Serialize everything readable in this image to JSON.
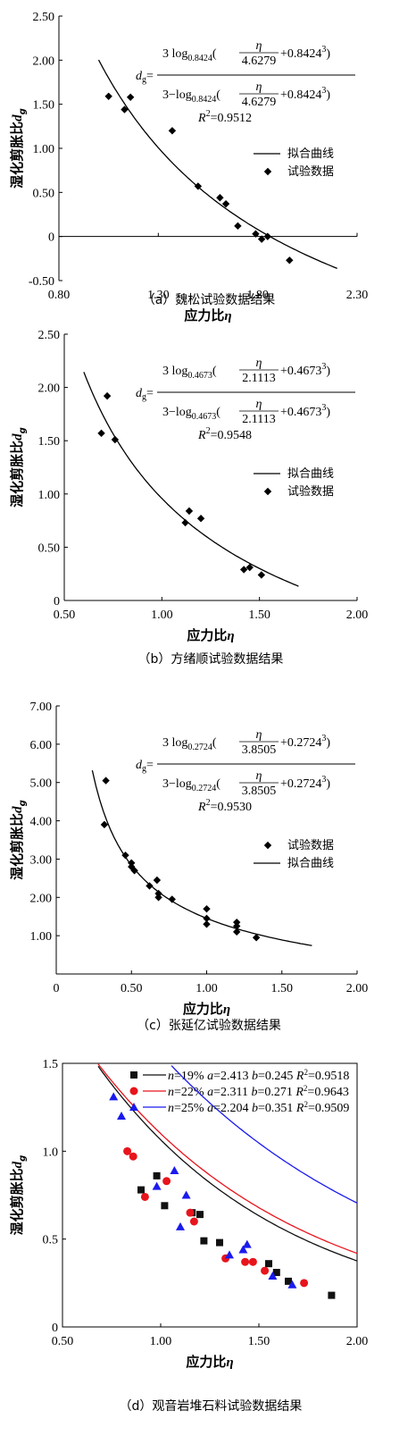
{
  "chart_data": [
    {
      "type": "scatter",
      "caption": "（a）魏松试验数据结果",
      "xlabel": "应力比η",
      "ylabel": "湿化剪胀比d",
      "ylabel_sub": "g",
      "xlim": [
        0.8,
        2.3
      ],
      "ylim": [
        -0.5,
        2.5
      ],
      "xticks": [
        0.8,
        1.3,
        1.8,
        2.3
      ],
      "xtick_labels": [
        "0.80",
        "1.30",
        "1.80",
        "2.30"
      ],
      "yticks": [
        -0.5,
        0,
        0.5,
        1.0,
        1.5,
        2.0,
        2.5
      ],
      "ytick_labels": [
        "-0.50",
        "0",
        "0.50",
        "1.00",
        "1.50",
        "2.00",
        "2.50"
      ],
      "formula": {
        "lhs": "d",
        "lhs_sub": "g",
        "num_coef": "3 log",
        "base": "0.8424",
        "eta": "η",
        "denom_val": "4.6279",
        "plus": "+0.8424",
        "pow": "3",
        "den_prefix": "3−log",
        "r2_label": "R",
        "r2_sup": "2",
        "r2_value": "=0.9512"
      },
      "legend": {
        "placement": "right",
        "curve": "拟合曲线",
        "data": "试验数据"
      },
      "fit": {
        "a": 0.8424,
        "b": 4.6279,
        "x_range": [
          1.0,
          2.2
        ]
      },
      "series": [
        {
          "name": "试验数据",
          "points": [
            [
              1.05,
              1.59
            ],
            [
              1.13,
              1.44
            ],
            [
              1.16,
              1.58
            ],
            [
              1.37,
              1.2
            ],
            [
              1.5,
              0.57
            ],
            [
              1.61,
              0.44
            ],
            [
              1.64,
              0.37
            ],
            [
              1.7,
              0.12
            ],
            [
              1.79,
              0.03
            ],
            [
              1.82,
              -0.03
            ],
            [
              1.85,
              0.0
            ],
            [
              1.96,
              -0.27
            ]
          ]
        }
      ]
    },
    {
      "type": "scatter",
      "caption": "（b）方绪顺试验数据结果",
      "xlabel": "应力比η",
      "ylabel": "湿化剪胀比d",
      "ylabel_sub": "g",
      "xlim": [
        0.5,
        2.0
      ],
      "ylim": [
        0,
        2.5
      ],
      "xticks": [
        0.5,
        1.0,
        1.5,
        2.0
      ],
      "xtick_labels": [
        "0.50",
        "1.00",
        "1.50",
        "2.00"
      ],
      "yticks": [
        0,
        0.5,
        1.0,
        1.5,
        2.0,
        2.5
      ],
      "ytick_labels": [
        "0",
        "0.50",
        "1.00",
        "1.50",
        "2.00",
        "2.50"
      ],
      "formula": {
        "lhs": "d",
        "lhs_sub": "g",
        "num_coef": "3 log",
        "base": "0.4673",
        "eta": "η",
        "denom_val": "2.1113",
        "plus": "+0.4673",
        "pow": "3",
        "den_prefix": "3−log",
        "r2_label": "R",
        "r2_sup": "2",
        "r2_value": "=0.9548"
      },
      "legend": {
        "placement": "right",
        "curve": "拟合曲线",
        "data": "试验数据"
      },
      "fit": {
        "a": 0.4673,
        "b": 2.1113,
        "x_range": [
          0.6,
          1.7
        ]
      },
      "series": [
        {
          "name": "试验数据",
          "points": [
            [
              0.69,
              1.57
            ],
            [
              0.72,
              1.92
            ],
            [
              0.76,
              1.51
            ],
            [
              1.12,
              0.73
            ],
            [
              1.14,
              0.84
            ],
            [
              1.2,
              0.77
            ],
            [
              1.42,
              0.29
            ],
            [
              1.45,
              0.31
            ],
            [
              1.51,
              0.24
            ]
          ]
        }
      ]
    },
    {
      "type": "scatter",
      "caption": "（c）张延亿试验数据结果",
      "xlabel": "应力比η",
      "ylabel": "湿化剪胀比d",
      "ylabel_sub": "g",
      "xlim": [
        0,
        2.0
      ],
      "ylim": [
        0,
        7.0
      ],
      "xticks": [
        0,
        0.5,
        1.0,
        1.5,
        2.0
      ],
      "xtick_labels": [
        "0",
        "0.50",
        "1.00",
        "1.50",
        "2.00"
      ],
      "yticks": [
        1,
        2,
        3,
        4,
        5,
        6,
        7
      ],
      "ytick_labels": [
        "1.00",
        "2.00",
        "3.00",
        "4.00",
        "5.00",
        "6.00",
        "7.00"
      ],
      "formula": {
        "lhs": "d",
        "lhs_sub": "g",
        "num_coef": "3 log",
        "base": "0.2724",
        "eta": "η",
        "denom_val": "3.8505",
        "plus": "+0.2724",
        "pow": "3",
        "den_prefix": "3−log",
        "r2_label": "R",
        "r2_sup": "2",
        "r2_value": "=0.9530"
      },
      "legend": {
        "placement": "right",
        "curve": "拟合曲线",
        "data": "试验数据"
      },
      "fit": {
        "a": 0.2724,
        "b": 3.8505,
        "x_range": [
          0.24,
          1.7
        ]
      },
      "series": [
        {
          "name": "试验数据",
          "points": [
            [
              0.32,
              3.9
            ],
            [
              0.33,
              5.05
            ],
            [
              0.46,
              3.1
            ],
            [
              0.5,
              2.9
            ],
            [
              0.5,
              2.8
            ],
            [
              0.52,
              2.7
            ],
            [
              0.62,
              2.3
            ],
            [
              0.67,
              2.45
            ],
            [
              0.68,
              2.1
            ],
            [
              0.68,
              2.0
            ],
            [
              0.77,
              1.95
            ],
            [
              1.0,
              1.7
            ],
            [
              1.0,
              1.45
            ],
            [
              1.0,
              1.3
            ],
            [
              1.2,
              1.35
            ],
            [
              1.2,
              1.25
            ],
            [
              1.2,
              1.1
            ],
            [
              1.33,
              0.95
            ]
          ]
        }
      ]
    },
    {
      "type": "scatter",
      "caption": "（d）观音岩堆石料试验数据结果",
      "xlabel": "应力比η",
      "ylabel": "湿化剪胀比d",
      "ylabel_sub": "g",
      "xlim": [
        0.5,
        2.0
      ],
      "ylim": [
        0,
        1.5
      ],
      "xticks": [
        0.5,
        1.0,
        1.5,
        2.0
      ],
      "xtick_labels": [
        "0.50",
        "1.00",
        "1.50",
        "2.00"
      ],
      "yticks": [
        0,
        0.5,
        1.0,
        1.5
      ],
      "ytick_labels": [
        "0",
        "0.5",
        "1.0",
        "1.5"
      ],
      "legend_placement": "top",
      "series": [
        {
          "n_label": "n",
          "n_value": "=19%",
          "a_label": "a",
          "a_value": "=2.413",
          "b_label": "b",
          "b_value": "=0.245",
          "r_label": "R",
          "r_sup": "2",
          "r_value": "=0.9518",
          "color": "#111111",
          "marker": "square",
          "a": 2.413,
          "b": 0.245,
          "points": [
            [
              0.9,
              0.78
            ],
            [
              0.98,
              0.86
            ],
            [
              1.02,
              0.69
            ],
            [
              1.16,
              0.65
            ],
            [
              1.2,
              0.64
            ],
            [
              1.22,
              0.49
            ],
            [
              1.3,
              0.48
            ],
            [
              1.55,
              0.36
            ],
            [
              1.59,
              0.31
            ],
            [
              1.65,
              0.26
            ],
            [
              1.87,
              0.18
            ]
          ]
        },
        {
          "n_label": "n",
          "n_value": "=22%",
          "a_label": "a",
          "a_value": "=2.311",
          "b_label": "b",
          "b_value": "=0.271",
          "r_label": "R",
          "r_sup": "2",
          "r_value": "=0.9643",
          "color": "#e8141c",
          "marker": "circle",
          "a": 2.311,
          "b": 0.271,
          "points": [
            [
              0.83,
              1.0
            ],
            [
              0.86,
              0.97
            ],
            [
              0.92,
              0.74
            ],
            [
              1.03,
              0.83
            ],
            [
              1.15,
              0.65
            ],
            [
              1.17,
              0.6
            ],
            [
              1.33,
              0.39
            ],
            [
              1.43,
              0.37
            ],
            [
              1.47,
              0.37
            ],
            [
              1.53,
              0.32
            ],
            [
              1.73,
              0.25
            ]
          ]
        },
        {
          "n_label": "n",
          "n_value": "=25%",
          "a_label": "a",
          "a_value": "=2.204",
          "b_label": "b",
          "b_value": "=0.351",
          "r_label": "R",
          "r_sup": "2",
          "r_value": "=0.9509",
          "color": "#1a1aee",
          "marker": "triangle",
          "a": 2.204,
          "b": 0.351,
          "points": [
            [
              0.76,
              1.31
            ],
            [
              0.8,
              1.2
            ],
            [
              0.98,
              0.8
            ],
            [
              1.07,
              0.89
            ],
            [
              1.1,
              0.57
            ],
            [
              1.13,
              0.75
            ],
            [
              1.35,
              0.41
            ],
            [
              1.42,
              0.44
            ],
            [
              1.44,
              0.47
            ],
            [
              1.57,
              0.29
            ],
            [
              1.67,
              0.24
            ]
          ]
        }
      ]
    }
  ]
}
